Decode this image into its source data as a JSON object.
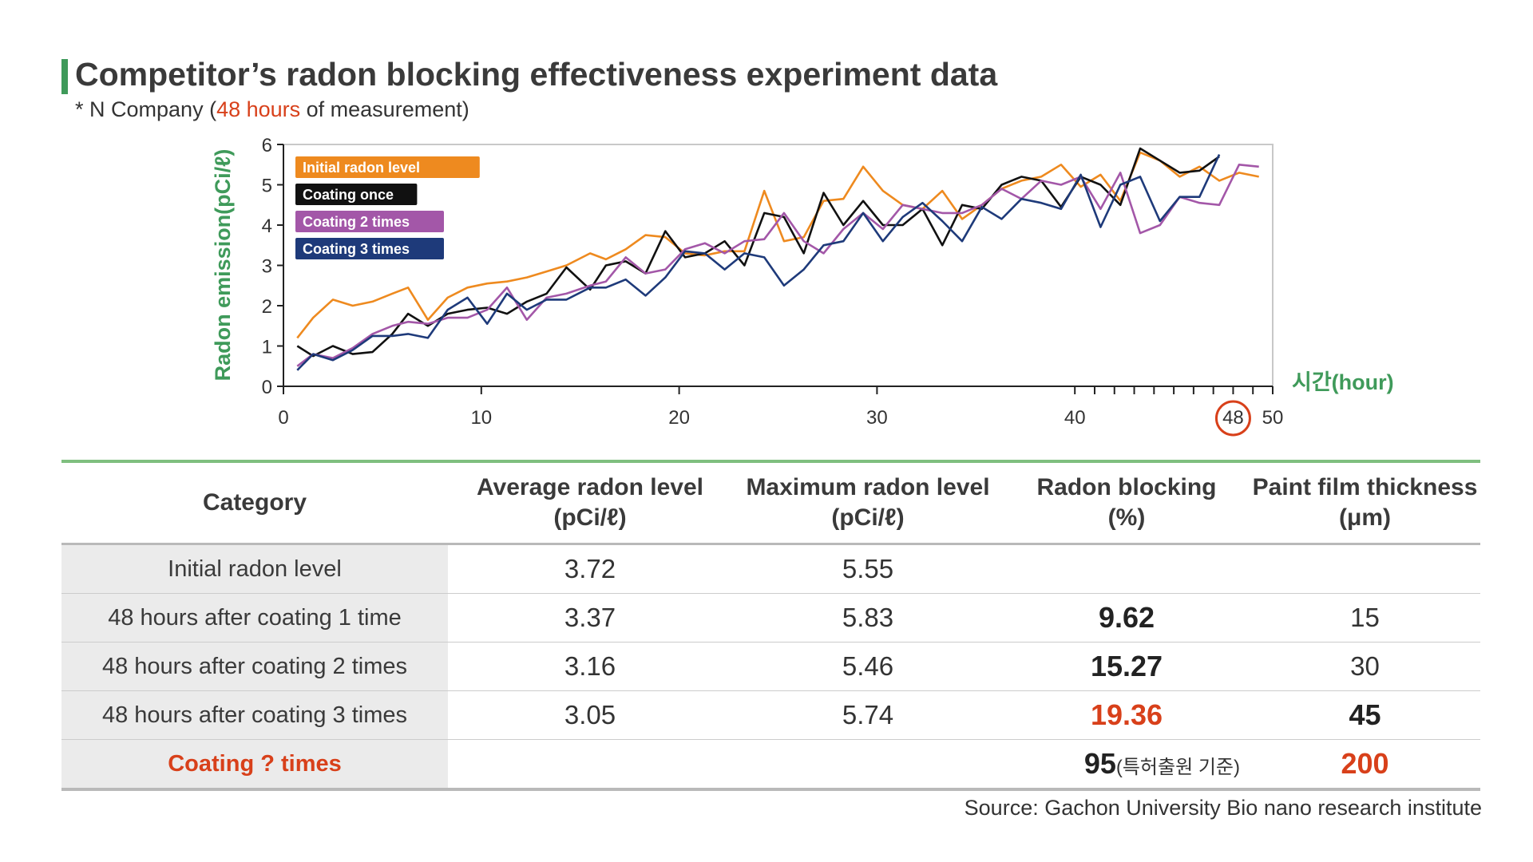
{
  "title": "Competitor’s radon blocking effectiveness experiment data",
  "subtitle": {
    "prefix": "* N Company (",
    "highlight": "48 hours",
    "suffix": " of measurement)"
  },
  "chart_data": {
    "type": "line",
    "ylabel": "Radon emission(pCi/ℓ)",
    "xlabel": "시간(hour)",
    "xlim": [
      0,
      50
    ],
    "ylim": [
      0,
      6
    ],
    "x_ticks": [
      "0",
      "10",
      "20",
      "30",
      "40",
      "50"
    ],
    "y_ticks": [
      "0",
      "1",
      "2",
      "3",
      "4",
      "5",
      "6"
    ],
    "x_marker": "48",
    "legend_position": "top-left",
    "series": [
      {
        "name": "Initial radon level",
        "color": "#ee8a1f",
        "x": [
          0.7,
          1.5,
          2.5,
          3.5,
          4.5,
          5.5,
          6.3,
          7.3,
          8.3,
          9.3,
          10.3,
          11.3,
          12.3,
          13.3,
          14.3,
          15.5,
          16.3,
          17.3,
          18.3,
          19.3,
          20.3,
          21.3,
          22.3,
          23.3,
          24.3,
          25.3,
          26.3,
          27.3,
          28.3,
          29.3,
          30.3,
          31.3,
          32.3,
          33.3,
          34.3,
          35.3,
          36.3,
          37.3,
          38.3,
          39.3,
          40.3,
          41.3,
          42.3,
          43.3,
          44.3,
          45.3,
          46.3,
          47.3,
          48.3,
          49.3
        ],
        "y": [
          1.2,
          1.7,
          2.15,
          2.0,
          2.1,
          2.3,
          2.45,
          1.65,
          2.2,
          2.45,
          2.55,
          2.6,
          2.7,
          2.85,
          3.0,
          3.3,
          3.15,
          3.4,
          3.75,
          3.7,
          3.3,
          3.25,
          3.35,
          3.35,
          4.85,
          3.6,
          3.7,
          4.6,
          4.65,
          5.45,
          4.85,
          4.5,
          4.4,
          4.85,
          4.15,
          4.5,
          4.9,
          5.1,
          5.2,
          5.5,
          4.95,
          5.25,
          4.6,
          5.8,
          5.6,
          5.2,
          5.45,
          5.1,
          5.3,
          5.2
        ]
      },
      {
        "name": "Coating once",
        "color": "#111111",
        "x": [
          0.7,
          1.5,
          2.5,
          3.5,
          4.5,
          5.5,
          6.3,
          7.3,
          8.3,
          9.3,
          10.3,
          11.3,
          12.3,
          13.3,
          14.3,
          15.5,
          16.3,
          17.3,
          18.3,
          19.3,
          20.3,
          21.3,
          22.3,
          23.3,
          24.3,
          25.3,
          26.3,
          27.3,
          28.3,
          29.3,
          30.3,
          31.3,
          32.3,
          33.3,
          34.3,
          35.3,
          36.3,
          37.3,
          38.3,
          39.3,
          40.3,
          41.3,
          42.3,
          43.3,
          44.3,
          45.3,
          46.3,
          47.3
        ],
        "y": [
          1.0,
          0.75,
          1.0,
          0.8,
          0.85,
          1.3,
          1.8,
          1.5,
          1.8,
          1.9,
          1.95,
          1.8,
          2.1,
          2.3,
          2.95,
          2.4,
          3.0,
          3.1,
          2.8,
          3.85,
          3.2,
          3.3,
          3.6,
          3.0,
          4.3,
          4.2,
          3.3,
          4.8,
          4.0,
          4.6,
          4.0,
          4.0,
          4.4,
          3.5,
          4.5,
          4.4,
          5.0,
          5.2,
          5.1,
          4.45,
          5.2,
          5.0,
          4.5,
          5.9,
          5.6,
          5.3,
          5.35,
          5.7
        ]
      },
      {
        "name": "Coating 2 times",
        "color": "#a357a8",
        "x": [
          0.7,
          1.5,
          2.5,
          3.5,
          4.5,
          5.5,
          6.3,
          7.3,
          8.3,
          9.3,
          10.3,
          11.3,
          12.3,
          13.3,
          14.3,
          15.5,
          16.3,
          17.3,
          18.3,
          19.3,
          20.3,
          21.3,
          22.3,
          23.3,
          24.3,
          25.3,
          26.3,
          27.3,
          28.3,
          29.3,
          30.3,
          31.3,
          32.3,
          33.3,
          34.3,
          35.3,
          36.3,
          37.3,
          38.3,
          39.3,
          40.3,
          41.3,
          42.3,
          43.3,
          44.3,
          45.3,
          46.3,
          47.3,
          48.3,
          49.3
        ],
        "y": [
          0.5,
          0.8,
          0.7,
          0.95,
          1.3,
          1.5,
          1.6,
          1.55,
          1.7,
          1.7,
          1.9,
          2.45,
          1.65,
          2.2,
          2.3,
          2.5,
          2.6,
          3.2,
          2.8,
          2.9,
          3.4,
          3.55,
          3.3,
          3.6,
          3.65,
          4.3,
          3.6,
          3.3,
          3.9,
          4.3,
          3.9,
          4.5,
          4.4,
          4.3,
          4.3,
          4.5,
          4.9,
          4.65,
          5.1,
          5.0,
          5.2,
          4.4,
          5.3,
          3.8,
          4.0,
          4.7,
          4.55,
          4.5,
          5.5,
          5.45
        ]
      },
      {
        "name": "Coating 3 times",
        "color": "#1e3a7a",
        "x": [
          0.7,
          1.5,
          2.5,
          3.5,
          4.5,
          5.5,
          6.3,
          7.3,
          8.3,
          9.3,
          10.3,
          11.3,
          12.3,
          13.3,
          14.3,
          15.5,
          16.3,
          17.3,
          18.3,
          19.3,
          20.3,
          21.3,
          22.3,
          23.3,
          24.3,
          25.3,
          26.3,
          27.3,
          28.3,
          29.3,
          30.3,
          31.3,
          32.3,
          33.3,
          34.3,
          35.3,
          36.3,
          37.3,
          38.3,
          39.3,
          40.3,
          41.3,
          42.3,
          43.3,
          44.3,
          45.3,
          46.3,
          47.3
        ],
        "y": [
          0.4,
          0.8,
          0.65,
          0.9,
          1.25,
          1.25,
          1.3,
          1.2,
          1.9,
          2.2,
          1.55,
          2.3,
          1.9,
          2.15,
          2.15,
          2.45,
          2.45,
          2.65,
          2.25,
          2.7,
          3.35,
          3.3,
          2.9,
          3.3,
          3.2,
          2.5,
          2.9,
          3.5,
          3.6,
          4.3,
          3.6,
          4.2,
          4.55,
          4.1,
          3.6,
          4.45,
          4.15,
          4.65,
          4.55,
          4.4,
          5.25,
          3.95,
          5.0,
          5.2,
          4.1,
          4.7,
          4.7,
          5.75
        ]
      }
    ]
  },
  "table": {
    "headers": [
      "Category",
      "Average radon level\n(pCi/ℓ)",
      "Maximum radon level\n(pCi/ℓ)",
      "Radon blocking\n(%)",
      "Paint film thickness\n(μm)"
    ],
    "rows": [
      {
        "category": "Initial radon level",
        "avg": "3.72",
        "max": "5.55",
        "blocking": "",
        "thickness": ""
      },
      {
        "category": "48 hours after coating 1 time",
        "avg": "3.37",
        "max": "5.83",
        "blocking": "9.62",
        "thickness": "15"
      },
      {
        "category": "48 hours after coating 2 times",
        "avg": "3.16",
        "max": "5.46",
        "blocking": "15.27",
        "thickness": "30"
      },
      {
        "category": "48 hours after coating 3 times",
        "avg": "3.05",
        "max": "5.74",
        "blocking": "19.36",
        "thickness": "45"
      },
      {
        "category": "Coating ? times",
        "avg": "",
        "max": "",
        "blocking": "95",
        "blocking_note": "(특허출원 기준)",
        "thickness": "200"
      }
    ]
  },
  "colors": {
    "accent_green": "#3f9a5a",
    "highlight_red": "#d8401a"
  },
  "source": "Source: Gachon University Bio nano research institute"
}
